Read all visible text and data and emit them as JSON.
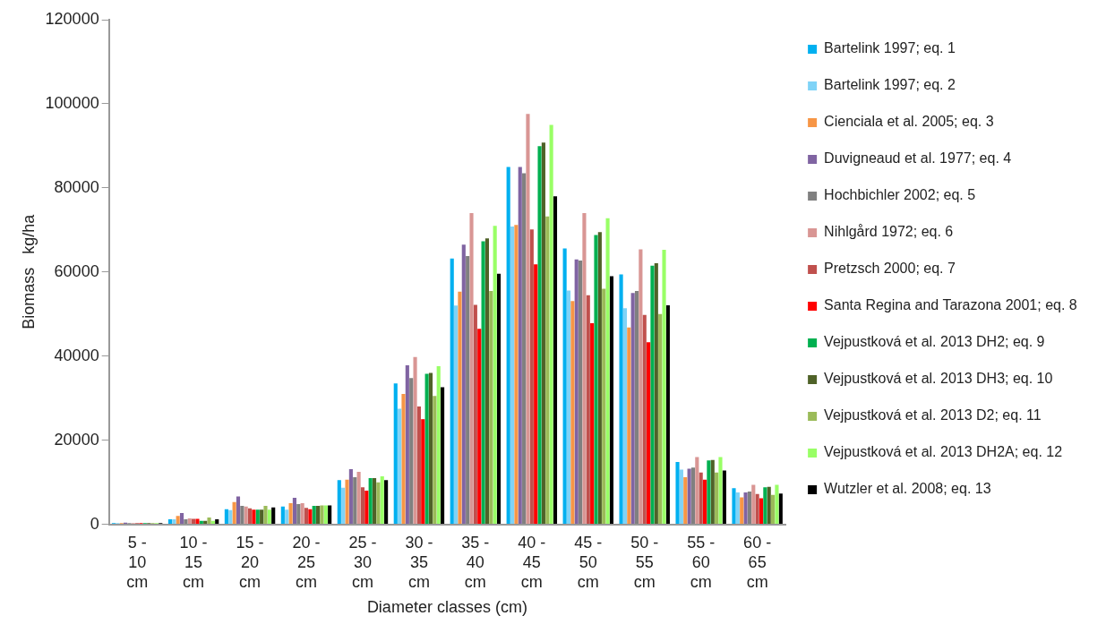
{
  "chart_data": {
    "type": "bar",
    "xlabel": "Diameter classes (cm)",
    "ylabel": "Biomass   kg/ha",
    "categories": [
      "5 - 10 cm",
      "10 - 15 cm",
      "15 - 20 cm",
      "20 - 25 cm",
      "25 - 30 cm",
      "30 - 35 cm",
      "35 - 40 cm",
      "40 - 45 cm",
      "45 - 50 cm",
      "50 - 55 cm",
      "55 - 60 cm",
      "60 - 65 cm"
    ],
    "ylim": [
      0,
      120000
    ],
    "yticks": [
      0,
      20000,
      40000,
      60000,
      80000,
      100000,
      120000
    ],
    "grid": false,
    "legend": "right",
    "series": [
      {
        "name": "Bartelink 1997; eq. 1",
        "color": "#00b0f0",
        "values": [
          300,
          1200,
          3600,
          4200,
          10500,
          33500,
          63200,
          85000,
          65600,
          59400,
          14800,
          8600
        ]
      },
      {
        "name": "Bartelink 1997; eq. 2",
        "color": "#7fd3f7",
        "values": [
          300,
          1200,
          3400,
          3500,
          8700,
          27500,
          52000,
          70800,
          55600,
          51400,
          13000,
          7600
        ]
      },
      {
        "name": "Cienciala et al. 2005; eq. 3",
        "color": "#f79646",
        "values": [
          300,
          2000,
          5300,
          5000,
          10600,
          31000,
          55300,
          71200,
          53100,
          46800,
          11200,
          6400
        ]
      },
      {
        "name": "Duvigneaud et al. 1977; eq. 4",
        "color": "#8064a2",
        "values": [
          400,
          2700,
          6600,
          6300,
          13100,
          37800,
          66500,
          85000,
          63000,
          55000,
          13200,
          7600
        ]
      },
      {
        "name": "Hochbichler 2002; eq. 5",
        "color": "#808080",
        "values": [
          300,
          1200,
          4400,
          4800,
          11200,
          34800,
          63800,
          83500,
          62700,
          55500,
          13500,
          7800
        ]
      },
      {
        "name": "Nihlgård 1972; eq. 6",
        "color": "#d99694",
        "values": [
          300,
          1400,
          4200,
          5000,
          12500,
          39800,
          74000,
          97600,
          74000,
          65400,
          16000,
          9400
        ]
      },
      {
        "name": "Pretzsch 2000; eq. 7",
        "color": "#c0504d",
        "values": [
          300,
          1300,
          3800,
          3900,
          8800,
          28000,
          52200,
          70100,
          54500,
          49800,
          12300,
          7200
        ]
      },
      {
        "name": "Santa Regina and Tarazona 2001; eq. 8",
        "color": "#ff0000",
        "values": [
          300,
          1300,
          3500,
          3600,
          8000,
          25000,
          46500,
          61800,
          47800,
          43300,
          10600,
          6200
        ]
      },
      {
        "name": "Vejpustková et al. 2013 DH2; eq. 9",
        "color": "#00b050",
        "values": [
          300,
          800,
          3500,
          4400,
          11000,
          35800,
          67300,
          89900,
          68800,
          61500,
          15200,
          8800
        ]
      },
      {
        "name": "Vejpustková et al. 2013 DH3; eq. 10",
        "color": "#4f6228",
        "values": [
          300,
          800,
          3500,
          4400,
          11000,
          36000,
          68000,
          90800,
          69500,
          62100,
          15300,
          8900
        ]
      },
      {
        "name": "Vejpustková et al. 2013 D2; eq. 11",
        "color": "#9bbb59",
        "values": [
          300,
          1600,
          4400,
          4500,
          10000,
          30500,
          55500,
          73200,
          56000,
          50000,
          12300,
          7000
        ]
      },
      {
        "name": "Vejpustková et al. 2013 DH2A; eq. 12",
        "color": "#99ff66",
        "values": [
          300,
          800,
          3500,
          4500,
          11400,
          37600,
          71000,
          95000,
          72800,
          65300,
          16000,
          9400
        ]
      },
      {
        "name": "Wutzler et al. 2008; eq. 13",
        "color": "#000000",
        "values": [
          300,
          1200,
          4000,
          4500,
          10500,
          32600,
          59600,
          78000,
          59000,
          52100,
          12800,
          7300
        ]
      }
    ]
  }
}
